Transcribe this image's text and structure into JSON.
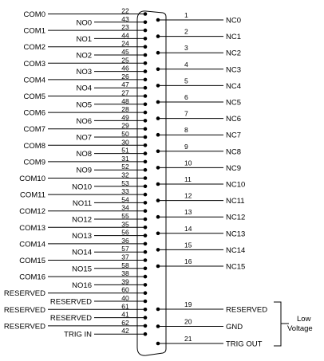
{
  "left_signals": [
    {
      "label": "COM0",
      "pin": "22"
    },
    {
      "label": "NO0",
      "pin": "43"
    },
    {
      "label": "COM1",
      "pin": "23"
    },
    {
      "label": "NO1",
      "pin": "44"
    },
    {
      "label": "COM2",
      "pin": "24"
    },
    {
      "label": "NO2",
      "pin": "45"
    },
    {
      "label": "COM3",
      "pin": "25"
    },
    {
      "label": "NO3",
      "pin": "46"
    },
    {
      "label": "COM4",
      "pin": "26"
    },
    {
      "label": "NO4",
      "pin": "47"
    },
    {
      "label": "COM5",
      "pin": "27"
    },
    {
      "label": "NO5",
      "pin": "48"
    },
    {
      "label": "COM6",
      "pin": "28"
    },
    {
      "label": "NO6",
      "pin": "49"
    },
    {
      "label": "COM7",
      "pin": "29"
    },
    {
      "label": "NO7",
      "pin": "50"
    },
    {
      "label": "COM8",
      "pin": "30"
    },
    {
      "label": "NO8",
      "pin": "51"
    },
    {
      "label": "COM9",
      "pin": "31"
    },
    {
      "label": "NO9",
      "pin": "52"
    },
    {
      "label": "COM10",
      "pin": "32"
    },
    {
      "label": "NO10",
      "pin": "53"
    },
    {
      "label": "COM11",
      "pin": "33"
    },
    {
      "label": "NO11",
      "pin": "54"
    },
    {
      "label": "COM12",
      "pin": "34"
    },
    {
      "label": "NO12",
      "pin": "55"
    },
    {
      "label": "COM13",
      "pin": "35"
    },
    {
      "label": "NO13",
      "pin": "56"
    },
    {
      "label": "COM14",
      "pin": "36"
    },
    {
      "label": "NO14",
      "pin": "57"
    },
    {
      "label": "COM15",
      "pin": "37"
    },
    {
      "label": "NO15",
      "pin": "58"
    },
    {
      "label": "COM16",
      "pin": "38"
    },
    {
      "label": "NO16",
      "pin": "39"
    },
    {
      "label": "RESERVED",
      "pin": "60"
    },
    {
      "label": "RESERVED",
      "pin": "40"
    },
    {
      "label": "RESERVED",
      "pin": "61"
    },
    {
      "label": "RESERVED",
      "pin": "41"
    },
    {
      "label": "RESERVED",
      "pin": "62"
    },
    {
      "label": "TRIG IN",
      "pin": "42"
    }
  ],
  "right_signals": [
    {
      "label": "NC0",
      "pin": "1"
    },
    {
      "label": "NC1",
      "pin": "2"
    },
    {
      "label": "NC2",
      "pin": "3"
    },
    {
      "label": "NC3",
      "pin": "4"
    },
    {
      "label": "NC4",
      "pin": "5"
    },
    {
      "label": "NC5",
      "pin": "6"
    },
    {
      "label": "NC6",
      "pin": "7"
    },
    {
      "label": "NC7",
      "pin": "8"
    },
    {
      "label": "NC8",
      "pin": "9"
    },
    {
      "label": "NC9",
      "pin": "10"
    },
    {
      "label": "NC10",
      "pin": "11"
    },
    {
      "label": "NC11",
      "pin": "12"
    },
    {
      "label": "NC12",
      "pin": "13"
    },
    {
      "label": "NC13",
      "pin": "14"
    },
    {
      "label": "NC14",
      "pin": "15"
    },
    {
      "label": "NC15",
      "pin": "16"
    },
    {
      "label": "RESERVED",
      "pin": "19"
    },
    {
      "label": "GND",
      "pin": "20"
    },
    {
      "label": "TRIG OUT",
      "pin": "21"
    }
  ],
  "low_voltage_note": {
    "line1": "Low",
    "line2": "Voltage"
  },
  "colors": {
    "ink": "#000000",
    "background": "#ffffff"
  }
}
